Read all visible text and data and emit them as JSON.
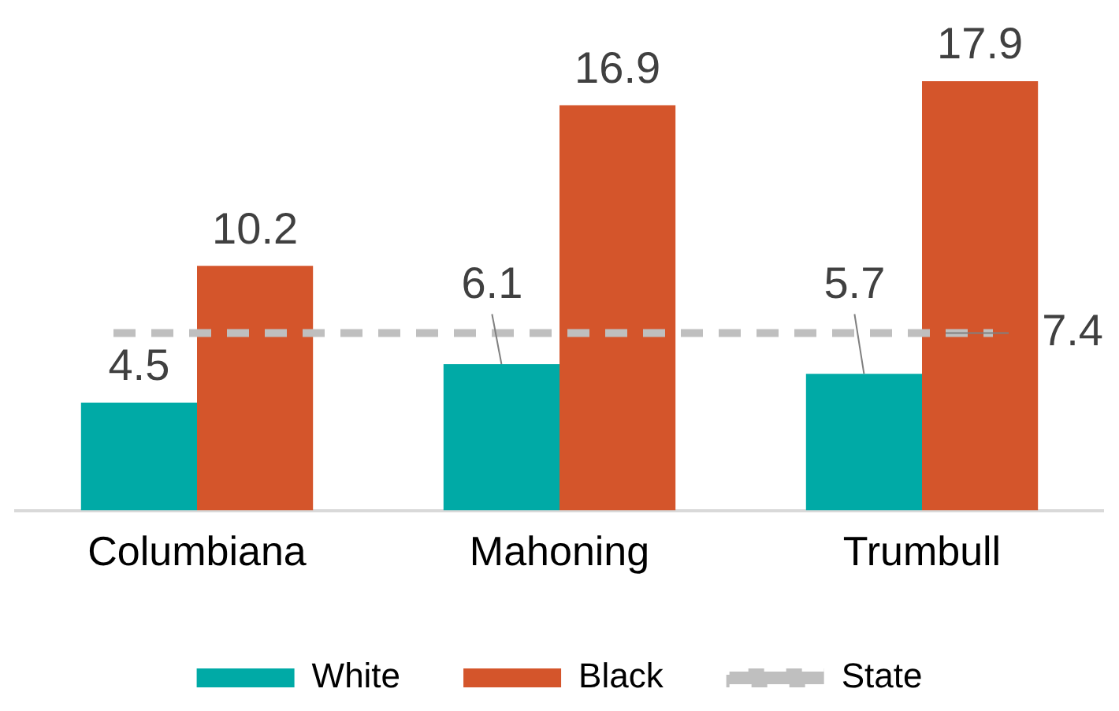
{
  "chart_data": {
    "type": "bar",
    "categories": [
      "Columbiana",
      "Mahoning",
      "Trumbull"
    ],
    "series": [
      {
        "name": "White",
        "color": "#00aaa6",
        "values": [
          4.5,
          6.1,
          5.7
        ]
      },
      {
        "name": "Black",
        "color": "#d4552b",
        "values": [
          10.2,
          16.9,
          17.9
        ]
      }
    ],
    "ref_lines": [
      {
        "axis": "y",
        "value": 7.4,
        "label": "State",
        "color": "#bfbfbf",
        "line_style": "dashed"
      }
    ],
    "annotations": [
      "7.4"
    ],
    "data_labels": true,
    "legend": "bottom"
  }
}
